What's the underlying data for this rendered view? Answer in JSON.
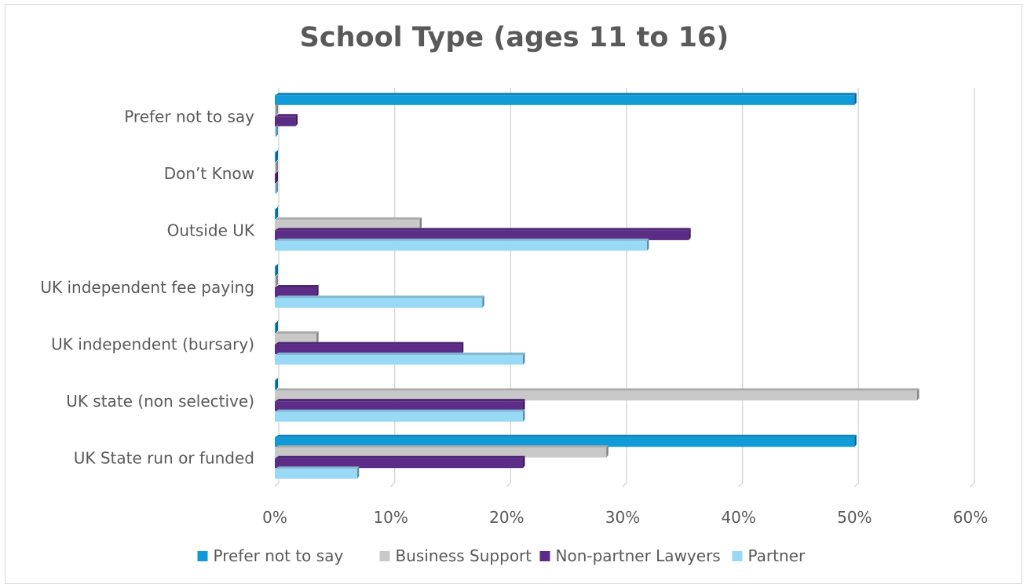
{
  "chart_data": {
    "type": "bar",
    "orientation": "horizontal",
    "title": "School Type (ages 11 to 16)",
    "xlabel": "",
    "ylabel": "",
    "categories": [
      "UK State run or funded",
      "UK state (non selective)",
      "UK independent (bursary)",
      "UK independent fee paying",
      "Outside UK",
      "Don’t Know",
      "Prefer not to say"
    ],
    "xlim": [
      0,
      0.6
    ],
    "ticks": [
      0,
      0.1,
      0.2,
      0.3,
      0.4,
      0.5,
      0.6
    ],
    "tick_labels": [
      "0%",
      "10%",
      "20%",
      "30%",
      "40%",
      "50%",
      "60%"
    ],
    "grid": true,
    "legend_position": "bottom",
    "series": [
      {
        "name": "Prefer not to say",
        "color": "#109ad7",
        "values": [
          0.5,
          0.0,
          0.0,
          0.0,
          0.0,
          0.0,
          0.5
        ]
      },
      {
        "name": "Business Support",
        "color": "#c8c8c8",
        "values": [
          0.286,
          0.554,
          0.036,
          0.0,
          0.125,
          0.0,
          0.0
        ]
      },
      {
        "name": "Non-partner Lawyers",
        "color": "#5c2d86",
        "values": [
          0.214,
          0.214,
          0.161,
          0.036,
          0.357,
          0.0,
          0.018
        ]
      },
      {
        "name": "Partner",
        "color": "#98d9f5",
        "values": [
          0.071,
          0.214,
          0.214,
          0.179,
          0.321,
          0.0,
          0.0
        ]
      }
    ]
  }
}
